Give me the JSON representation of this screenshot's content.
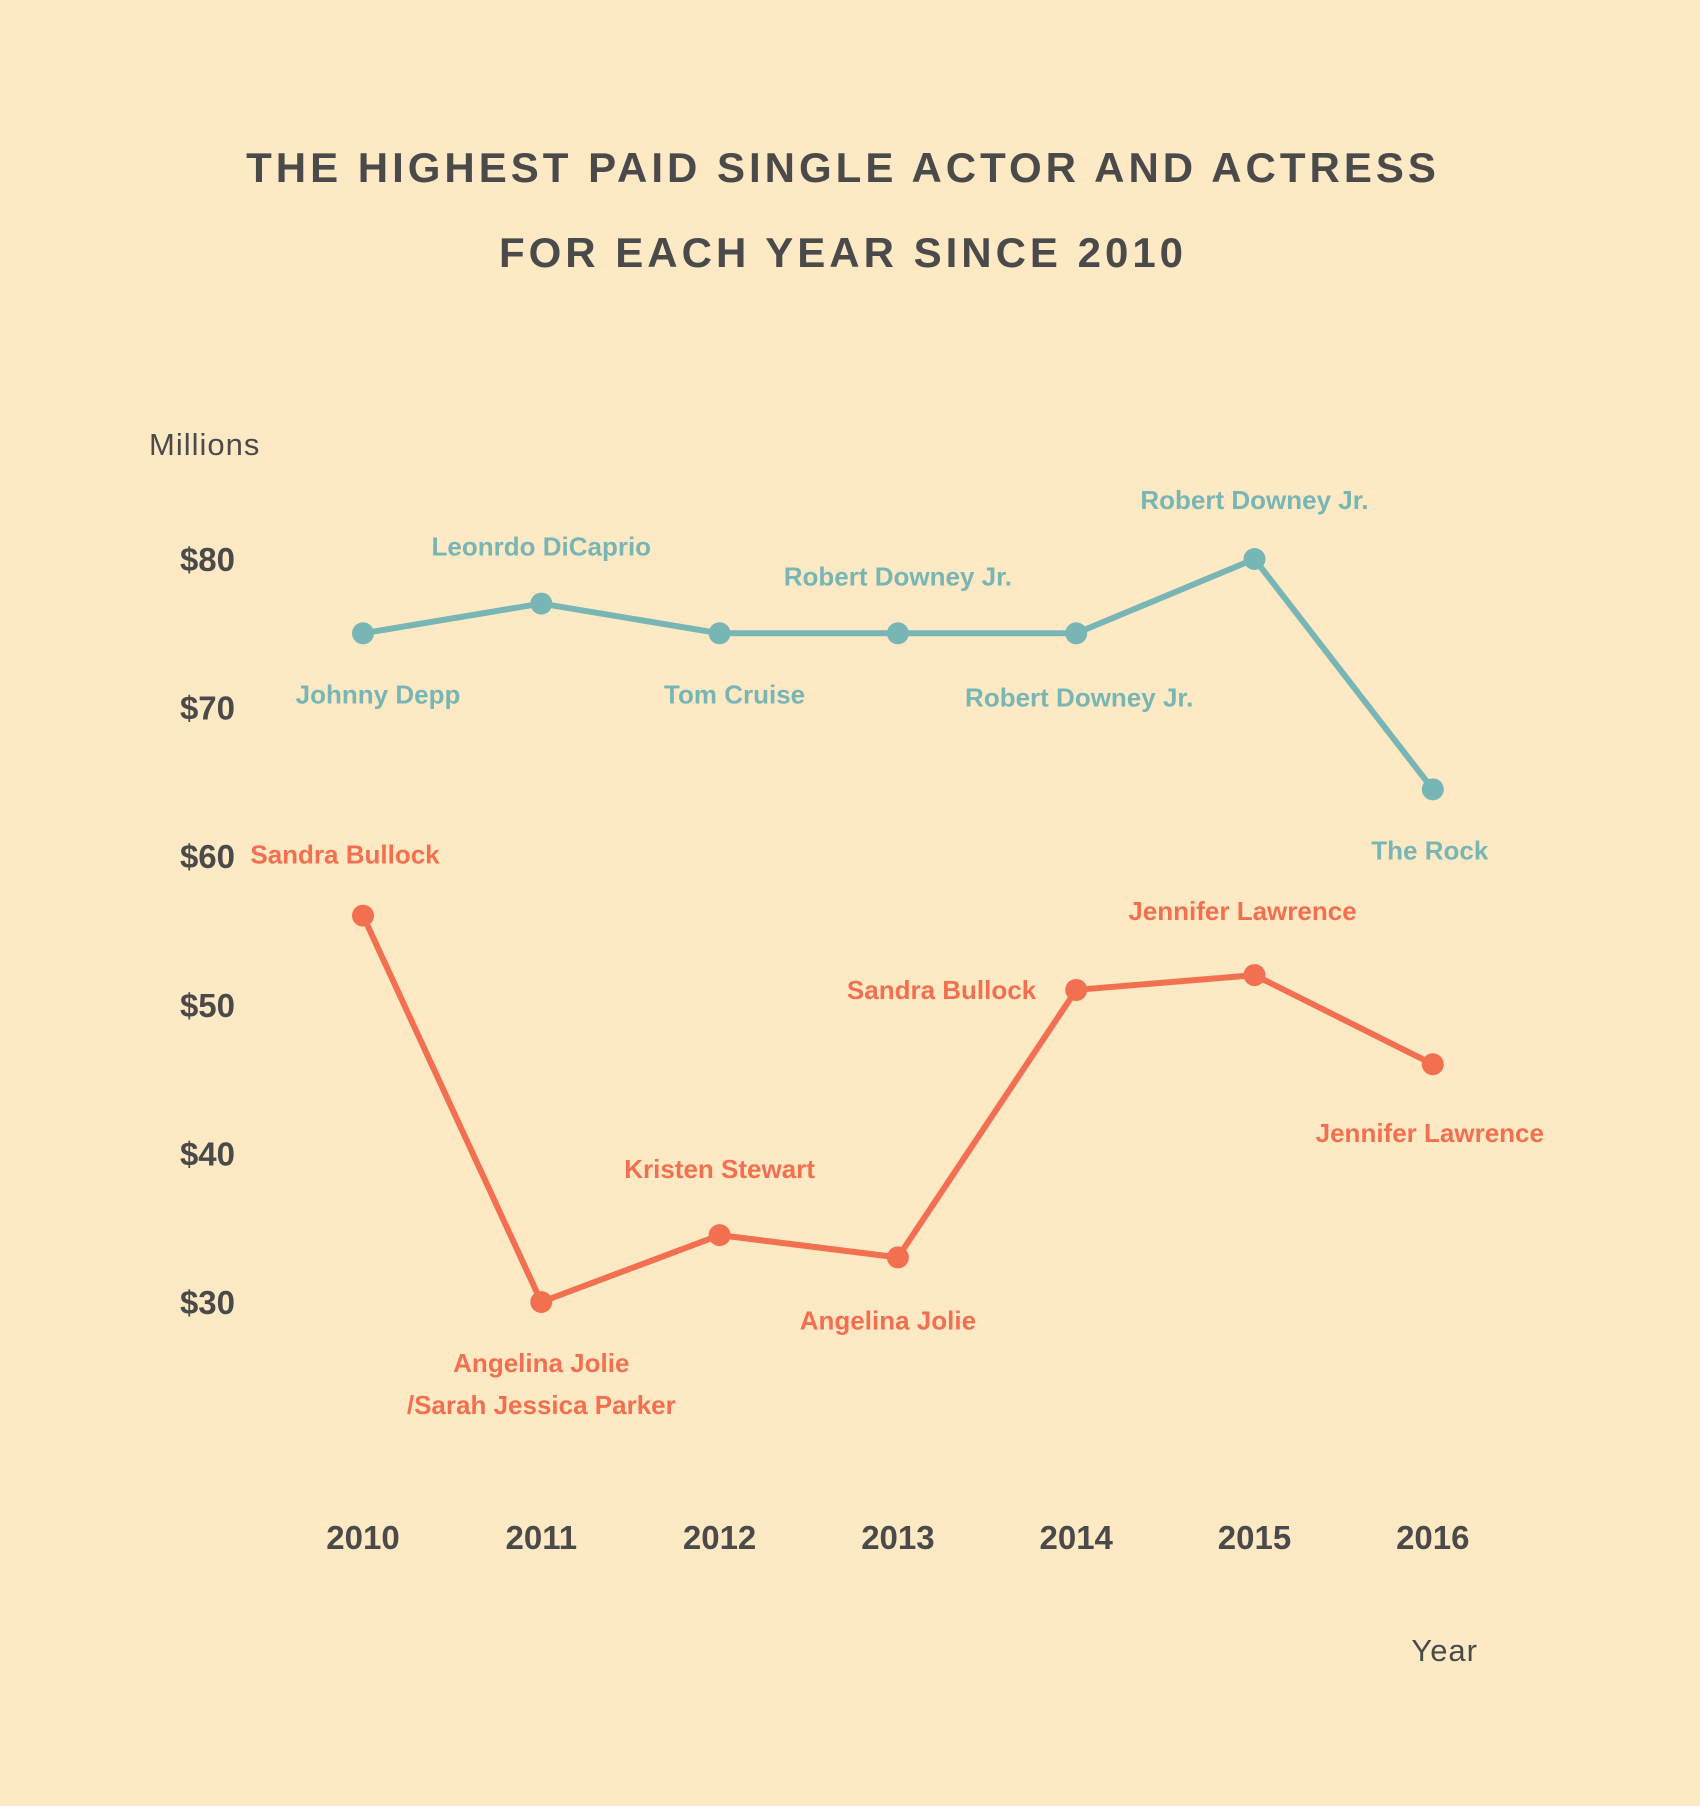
{
  "colors": {
    "background": "#FEE9C5",
    "text": "#4A4A4A",
    "actor": "#78B5B5",
    "actress": "#F2704F"
  },
  "chart_data": {
    "type": "line",
    "title": [
      "THE HIGHEST PAID SINGLE ACTOR AND ACTRESS",
      "FOR EACH YEAR SINCE 2010"
    ],
    "xlabel": "Year",
    "ylabel": "Millions",
    "x": [
      "2010",
      "2011",
      "2012",
      "2013",
      "2014",
      "2015",
      "2016"
    ],
    "yticks": [
      80,
      70,
      60,
      50,
      40,
      30
    ],
    "ytick_labels": [
      "$80",
      "$70",
      "$60",
      "$50",
      "$40",
      "$30"
    ],
    "ylim": [
      21,
      87
    ],
    "grid": false,
    "legend": "none",
    "series": [
      {
        "name": "Actor",
        "color": "#78B5B5",
        "values": [
          75,
          77,
          75,
          75,
          75,
          80,
          64.5
        ],
        "labels": [
          "Johnny Depp",
          "Leonrdo DiCaprio",
          "Tom Cruise",
          "Robert Downey Jr.",
          "Robert Downey Jr.",
          "Robert Downey Jr.",
          "The Rock"
        ],
        "label_side": [
          "below",
          "above",
          "below",
          "above",
          "below",
          "above",
          "below"
        ]
      },
      {
        "name": "Actress",
        "color": "#F2704F",
        "values": [
          56,
          30,
          34.5,
          33,
          51,
          52,
          46
        ],
        "labels": [
          "Sandra Bullock",
          "Angelina Jolie\n/Sarah Jessica Parker",
          "Kristen Stewart",
          "Angelina Jolie",
          "Sandra Bullock",
          "Jennifer Lawrence",
          "Jennifer Lawrence"
        ],
        "label_side": [
          "above",
          "below",
          "above",
          "below",
          "left",
          "above",
          "below"
        ]
      }
    ]
  }
}
